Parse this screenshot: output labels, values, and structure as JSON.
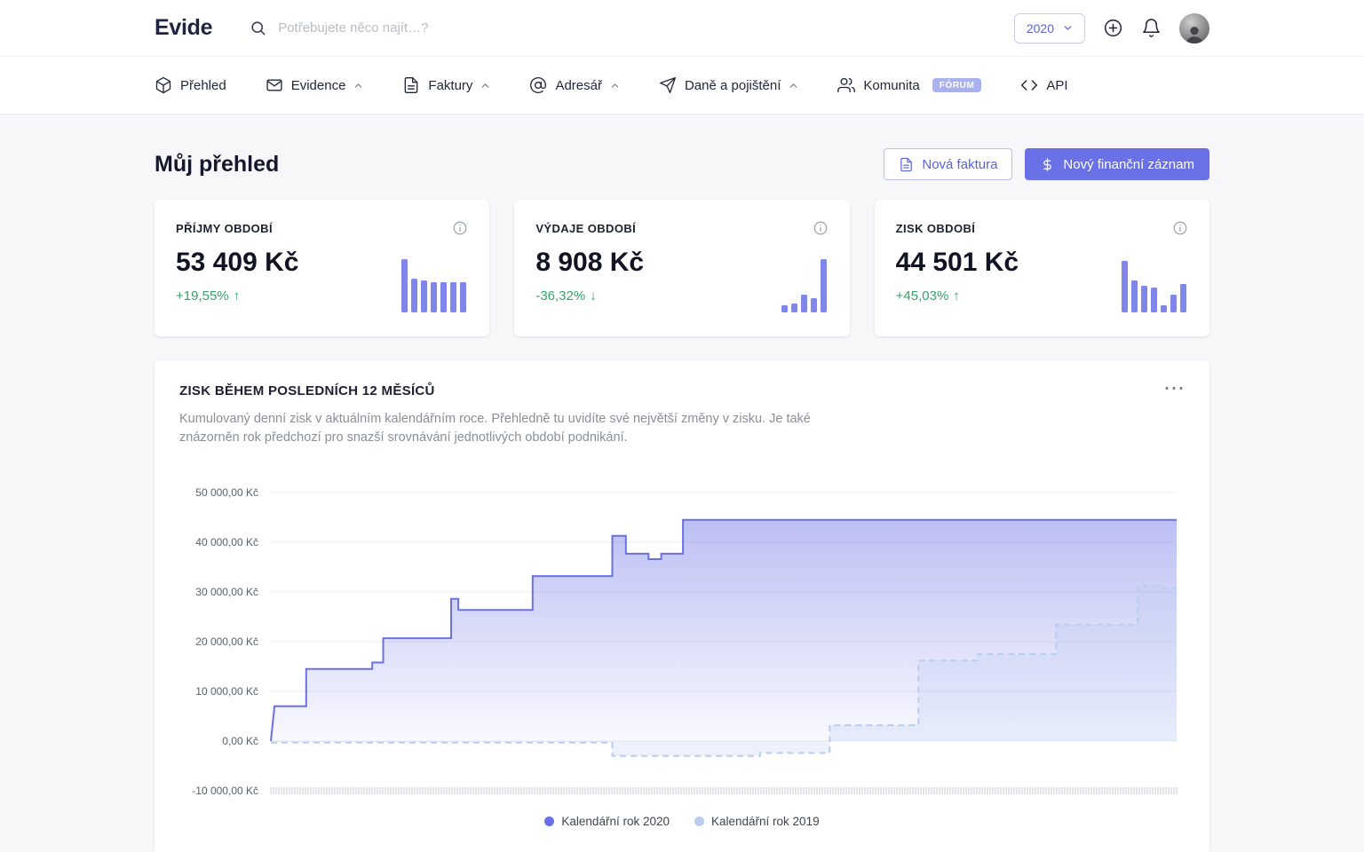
{
  "brand": "Evide",
  "topbar": {
    "search_placeholder": "Potřebujete něco najít…?",
    "year": "2020"
  },
  "nav": {
    "items": [
      {
        "label": "Přehled",
        "icon": "box-icon",
        "expandable": false
      },
      {
        "label": "Evidence",
        "icon": "envelope-icon",
        "expandable": true
      },
      {
        "label": "Faktury",
        "icon": "file-text-icon",
        "expandable": true
      },
      {
        "label": "Adresář",
        "icon": "at-sign-icon",
        "expandable": true
      },
      {
        "label": "Daně a pojištění",
        "icon": "send-icon",
        "expandable": true
      },
      {
        "label": "Komunita",
        "icon": "users-icon",
        "expandable": false,
        "badge": "FÓRUM"
      },
      {
        "label": "API",
        "icon": "code-icon",
        "expandable": false
      }
    ]
  },
  "page": {
    "title": "Můj přehled",
    "new_invoice_label": "Nová faktura",
    "new_record_label": "Nový finanční záznam"
  },
  "stats": [
    {
      "label": "PŘÍJMY OBDOBÍ",
      "value": "53 409 Kč",
      "delta": "+19,55%",
      "arrow": "↑",
      "trend": "up",
      "bars": [
        60,
        38,
        36,
        34,
        34,
        34,
        34
      ]
    },
    {
      "label": "VÝDAJE OBDOBÍ",
      "value": "8 908 Kč",
      "delta": "-36,32%",
      "arrow": "↓",
      "trend": "down",
      "bars": [
        8,
        10,
        20,
        16,
        60
      ]
    },
    {
      "label": "ZISK OBDOBÍ",
      "value": "44 501 Kč",
      "delta": "+45,03%",
      "arrow": "↑",
      "trend": "up",
      "bars": [
        58,
        36,
        30,
        28,
        8,
        20,
        32
      ]
    }
  ],
  "chart_card": {
    "title": "ZISK BĚHEM POSLEDNÍCH 12 MĚSÍCŮ",
    "menu": "⋯",
    "description": "Kumulovaný denní zisk v aktuálním kalendářním roce. Přehledně tu uvidíte své největší změny v zisku. Je také znázorněn rok předchozí pro snazší srovnávání jednotlivých období podnikání."
  },
  "chart_data": {
    "type": "area",
    "title": "Zisk během posledních 12 měsíců",
    "unit": "Kč",
    "ylim": [
      -10000,
      50000
    ],
    "y_ticks": [
      "50 000,00 Kč",
      "40 000,00 Kč",
      "30 000,00 Kč",
      "20 000,00 Kč",
      "10 000,00 Kč",
      "0,00 Kč",
      "-10 000,00 Kč"
    ],
    "grid": true,
    "legend_position": "bottom",
    "series": [
      {
        "name": "Kalendářní rok 2020",
        "color": "#6a71e6",
        "style": "solid",
        "fill": "gradient",
        "points": [
          [
            0,
            0
          ],
          [
            0.004,
            7000
          ],
          [
            0.039,
            7000
          ],
          [
            0.039,
            14500
          ],
          [
            0.112,
            14500
          ],
          [
            0.112,
            15800
          ],
          [
            0.124,
            15800
          ],
          [
            0.124,
            20700
          ],
          [
            0.199,
            20700
          ],
          [
            0.199,
            28600
          ],
          [
            0.207,
            28600
          ],
          [
            0.207,
            26400
          ],
          [
            0.289,
            26400
          ],
          [
            0.289,
            33200
          ],
          [
            0.377,
            33200
          ],
          [
            0.377,
            41300
          ],
          [
            0.392,
            41300
          ],
          [
            0.392,
            37700
          ],
          [
            0.417,
            37700
          ],
          [
            0.417,
            36600
          ],
          [
            0.431,
            36600
          ],
          [
            0.431,
            37700
          ],
          [
            0.455,
            37700
          ],
          [
            0.455,
            44500
          ],
          [
            1,
            44500
          ]
        ]
      },
      {
        "name": "Kalendářní rok 2019",
        "color": "#b9cdef",
        "style": "dashed",
        "fill": "faint",
        "points": [
          [
            0,
            -300
          ],
          [
            0.377,
            -300
          ],
          [
            0.377,
            -3000
          ],
          [
            0.54,
            -3000
          ],
          [
            0.54,
            -2400
          ],
          [
            0.617,
            -2400
          ],
          [
            0.617,
            3200
          ],
          [
            0.715,
            3200
          ],
          [
            0.715,
            16200
          ],
          [
            0.78,
            16200
          ],
          [
            0.78,
            17500
          ],
          [
            0.867,
            17500
          ],
          [
            0.867,
            23400
          ],
          [
            0.957,
            23400
          ],
          [
            0.957,
            31200
          ],
          [
            0.985,
            31200
          ],
          [
            0.985,
            30700
          ],
          [
            1,
            30700
          ]
        ]
      }
    ]
  },
  "colors": {
    "accent": "#6a71e6",
    "accent_light": "#8187ea",
    "badge": "#a9b2ee",
    "green": "#35a36b",
    "grid": "#ebedf1",
    "series_2019": "#b9cdef",
    "page_bg": "#f7f7f9"
  }
}
